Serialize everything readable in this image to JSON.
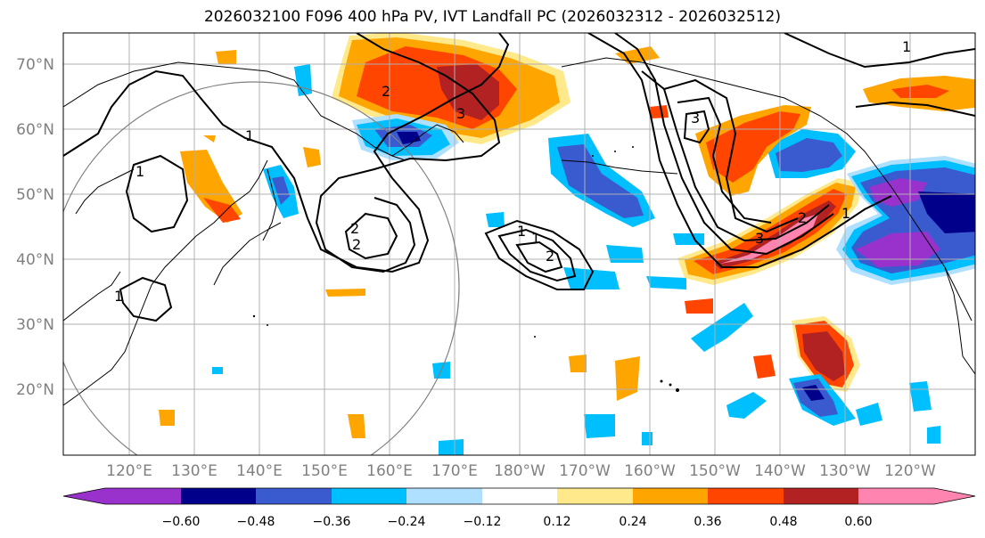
{
  "title": "2026032100 F096 400 hPa PV, IVT Landfall PC (2026032312 - 2026032512)",
  "lat_labels": [
    "70°N",
    "60°N",
    "50°N",
    "40°N",
    "30°N",
    "20°N"
  ],
  "lon_labels": [
    "120°E",
    "130°E",
    "140°E",
    "150°E",
    "160°E",
    "170°E",
    "180°W",
    "170°W",
    "160°W",
    "150°W",
    "140°W",
    "130°W",
    "120°W"
  ],
  "colorbar": {
    "colors": [
      "#9932CC",
      "#00008B",
      "#3A5ACF",
      "#00BFFF",
      "#B0E0FF",
      "#FFFFFF",
      "#FFE98A",
      "#FFA500",
      "#FF4500",
      "#B22222",
      "#FF85B0"
    ],
    "ticks": [
      "−0.60",
      "−0.48",
      "−0.36",
      "−0.24",
      "−0.12",
      "0.12",
      "0.24",
      "0.36",
      "0.48",
      "0.60"
    ]
  },
  "contour_labels": [
    "1",
    "1",
    "1",
    "2",
    "3",
    "2",
    "2",
    "1",
    "1",
    "2",
    "3",
    "3",
    "2",
    "1",
    "1"
  ],
  "colors": {
    "coast": "#000000",
    "grid": "#b0b0b0",
    "circle": "#808080"
  }
}
